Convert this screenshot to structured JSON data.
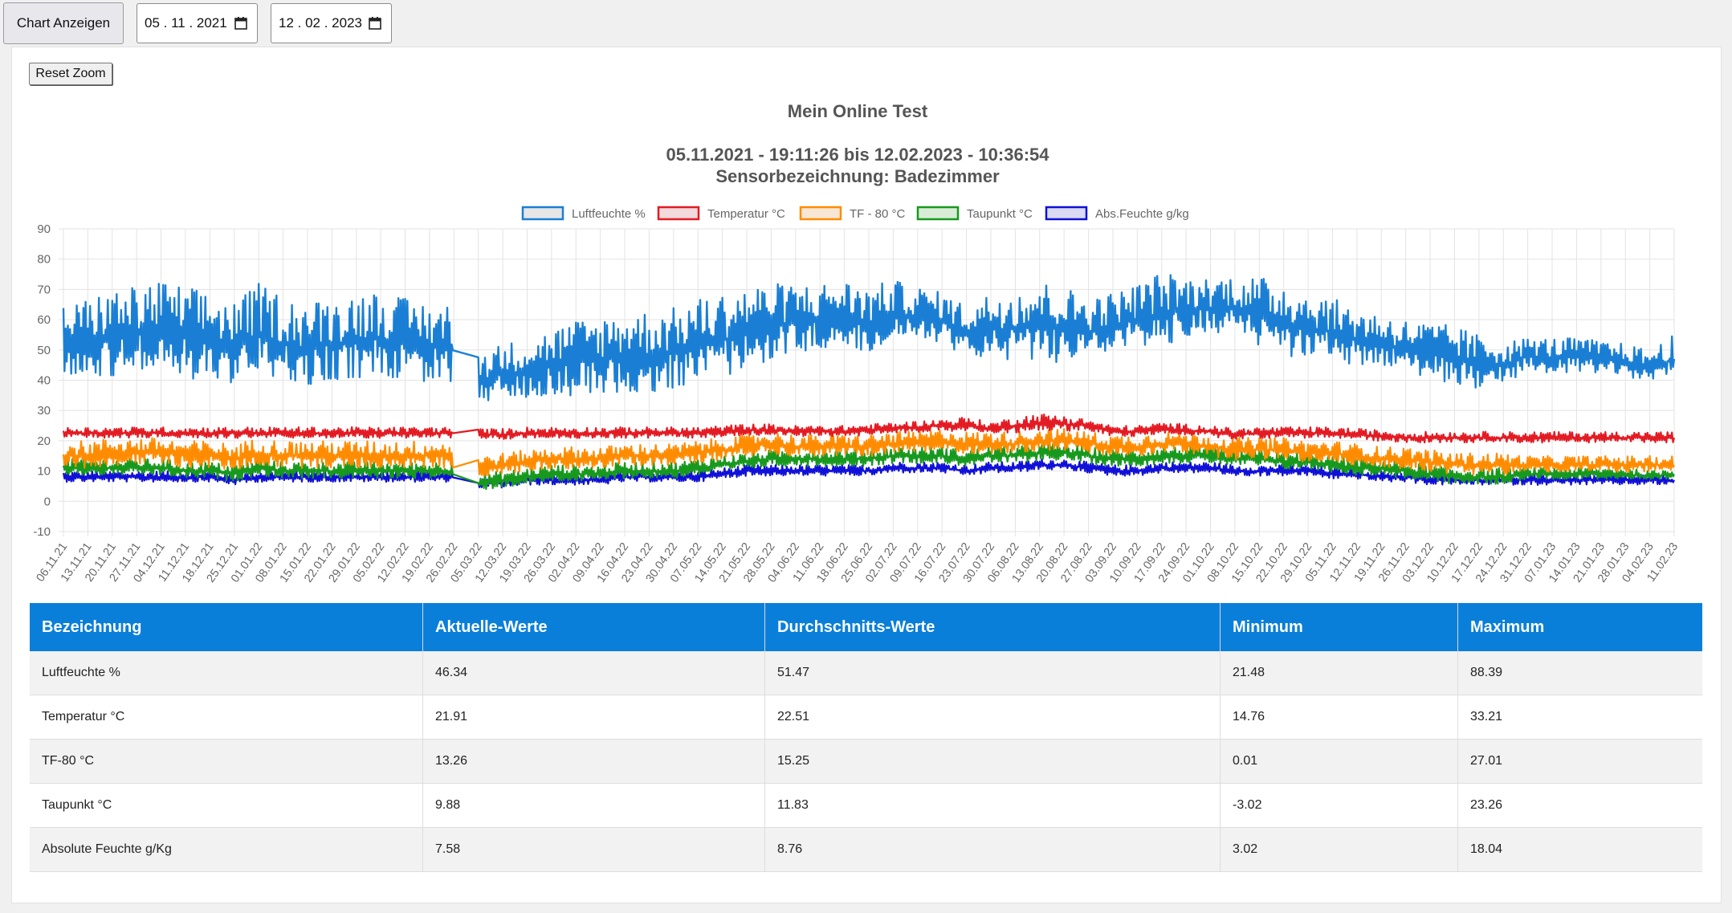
{
  "toolbar": {
    "show_chart_label": "Chart Anzeigen",
    "date_from": "05 . 11 . 2021",
    "date_to": "12 . 02 . 2023",
    "reset_zoom_label": "Reset Zoom"
  },
  "chart_data": {
    "type": "line",
    "title": "Mein Online Test",
    "subtitle_line1": "05.11.2021 - 19:11:26 bis 12.02.2023 - 10:36:54",
    "subtitle_line2": "Sensorbezeichnung: Badezimmer",
    "ylim": [
      -10,
      90
    ],
    "yticks": [
      90,
      80,
      70,
      60,
      50,
      40,
      30,
      20,
      10,
      0,
      -10
    ],
    "grid": true,
    "legend_position": "top",
    "x_range": [
      "06.11.21",
      "11.02.23"
    ],
    "data_gap": [
      "26.02.22",
      "05.03.22"
    ],
    "categories": [
      "06.11.21",
      "13.11.21",
      "20.11.21",
      "27.11.21",
      "04.12.21",
      "11.12.21",
      "18.12.21",
      "25.12.21",
      "01.01.22",
      "08.01.22",
      "15.01.22",
      "22.01.22",
      "29.01.22",
      "05.02.22",
      "12.02.22",
      "19.02.22",
      "26.02.22",
      "05.03.22",
      "12.03.22",
      "19.03.22",
      "26.03.22",
      "02.04.22",
      "09.04.22",
      "16.04.22",
      "23.04.22",
      "30.04.22",
      "07.05.22",
      "14.05.22",
      "21.05.22",
      "28.05.22",
      "04.06.22",
      "11.06.22",
      "18.06.22",
      "25.06.22",
      "02.07.22",
      "09.07.22",
      "16.07.22",
      "23.07.22",
      "30.07.22",
      "06.08.22",
      "13.08.22",
      "20.08.22",
      "27.08.22",
      "03.09.22",
      "10.09.22",
      "17.09.22",
      "24.09.22",
      "01.10.22",
      "08.10.22",
      "15.10.22",
      "22.10.22",
      "29.10.22",
      "05.11.22",
      "12.11.22",
      "19.11.22",
      "26.11.22",
      "03.12.22",
      "10.12.22",
      "17.12.22",
      "24.12.22",
      "31.12.22",
      "07.01.23",
      "14.01.23",
      "21.01.23",
      "28.01.23",
      "04.02.23",
      "11.02.23"
    ],
    "series": [
      {
        "name": "Luftfeuchte %",
        "color": "#1a7fd4",
        "fill": "#e6e6e6",
        "weekly_mean": [
          52,
          53,
          54,
          55,
          56,
          54,
          53,
          51,
          55,
          52,
          50,
          52,
          53,
          54,
          52,
          51,
          50,
          40,
          42,
          43,
          45,
          46,
          47,
          48,
          48,
          49,
          52,
          53,
          56,
          58,
          59,
          60,
          61,
          58,
          62,
          61,
          60,
          55,
          57,
          57,
          58,
          57,
          56,
          58,
          60,
          62,
          63,
          64,
          64,
          61,
          59,
          57,
          56,
          53,
          52,
          50,
          49,
          47,
          45,
          45,
          48,
          47,
          48,
          47,
          46,
          44,
          47
        ],
        "weekly_amplitude": [
          13,
          14,
          16,
          16,
          17,
          17,
          16,
          15,
          17,
          16,
          16,
          15,
          16,
          16,
          15,
          15,
          15,
          10,
          10,
          11,
          12,
          14,
          14,
          15,
          15,
          15,
          15,
          16,
          15,
          14,
          13,
          12,
          12,
          13,
          11,
          10,
          9,
          10,
          12,
          14,
          15,
          14,
          12,
          11,
          12,
          14,
          11,
          10,
          11,
          13,
          14,
          12,
          11,
          11,
          10,
          10,
          10,
          11,
          10,
          8,
          6,
          7,
          6,
          6,
          6,
          6,
          8
        ]
      },
      {
        "name": "Temperatur °C",
        "color": "#e31b23",
        "fill": "#f2d9dc",
        "weekly_mean": [
          22.5,
          22.5,
          22.5,
          22.5,
          22.5,
          22.5,
          22.5,
          22.5,
          22.5,
          22.5,
          22.5,
          22.5,
          22.5,
          22.5,
          22.5,
          22.5,
          22.5,
          22.0,
          22.0,
          22.5,
          22.5,
          22.5,
          22.5,
          22.5,
          22.5,
          22.5,
          22.5,
          23.0,
          23.5,
          23.5,
          23.0,
          23.0,
          23.0,
          23.5,
          24.0,
          24.5,
          25.0,
          25.0,
          24.0,
          25.0,
          26.0,
          25.5,
          25.0,
          23.0,
          23.0,
          24.0,
          23.5,
          23.0,
          22.0,
          22.5,
          22.5,
          22.5,
          22.5,
          22.0,
          21.5,
          21.0,
          21.0,
          21.0,
          21.0,
          21.0,
          21.0,
          21.0,
          21.0,
          21.0,
          21.0,
          21.0,
          21.0
        ],
        "weekly_amplitude": [
          2,
          2,
          2,
          2,
          2,
          2,
          2,
          2,
          2,
          2,
          2,
          2,
          2,
          2,
          2,
          2,
          2,
          2,
          2,
          2,
          2,
          2,
          2,
          2,
          2,
          2,
          2,
          2,
          2,
          2,
          2,
          2,
          2,
          2,
          2,
          2,
          2,
          3,
          2,
          3,
          3,
          3,
          2,
          2,
          2,
          2,
          2,
          2,
          2,
          2,
          2,
          2,
          2,
          2,
          2,
          2,
          2,
          2,
          2,
          2,
          2,
          2,
          2,
          2,
          2,
          2,
          2
        ]
      },
      {
        "name": "TF - 80 °C",
        "color": "#ff8c00",
        "fill": "#f7e6d3",
        "weekly_mean": [
          15,
          15,
          16,
          16,
          16,
          15,
          15,
          14,
          16,
          15,
          15,
          15,
          15,
          15,
          15,
          15,
          15,
          11,
          12,
          13,
          14,
          14,
          14,
          15,
          15,
          15,
          16,
          17,
          18,
          19,
          18,
          18,
          18,
          18,
          19,
          19,
          20,
          19,
          19,
          19,
          20,
          20,
          19,
          18,
          18,
          19,
          19,
          18,
          17,
          17,
          17,
          16,
          16,
          15,
          14,
          14,
          13,
          12,
          12,
          12,
          12,
          12,
          12,
          12,
          12,
          12,
          12
        ],
        "weekly_amplitude": [
          5,
          5,
          5,
          5,
          5,
          5,
          5,
          5,
          5,
          5,
          5,
          5,
          5,
          5,
          5,
          5,
          5,
          4,
          4,
          4,
          4,
          4,
          4,
          4,
          4,
          4,
          4,
          4,
          4,
          4,
          4,
          4,
          4,
          4,
          4,
          4,
          4,
          4,
          4,
          4,
          4,
          4,
          4,
          4,
          4,
          4,
          4,
          4,
          4,
          4,
          4,
          4,
          4,
          4,
          4,
          4,
          4,
          4,
          4,
          4,
          3,
          3,
          3,
          3,
          3,
          3,
          3
        ]
      },
      {
        "name": "Taupunkt °C",
        "color": "#17991e",
        "fill": "#d9edd6",
        "weekly_mean": [
          11,
          11,
          11,
          11,
          11,
          10,
          10,
          9,
          11,
          10,
          10,
          10,
          10,
          10,
          10,
          10,
          10,
          6,
          7,
          8,
          9,
          9,
          9,
          10,
          10,
          10,
          11,
          12,
          13,
          14,
          14,
          14,
          14,
          14,
          15,
          15,
          15,
          14,
          15,
          15,
          16,
          16,
          15,
          14,
          14,
          15,
          15,
          15,
          14,
          14,
          13,
          13,
          12,
          11,
          11,
          10,
          9,
          8,
          8,
          8,
          9,
          9,
          9,
          9,
          9,
          8,
          9
        ],
        "weekly_amplitude": [
          3,
          3,
          3,
          3,
          3,
          3,
          3,
          3,
          3,
          3,
          3,
          3,
          3,
          3,
          3,
          3,
          3,
          3,
          3,
          3,
          3,
          3,
          3,
          3,
          3,
          3,
          3,
          3,
          3,
          3,
          3,
          3,
          3,
          3,
          3,
          3,
          3,
          3,
          3,
          3,
          3,
          3,
          3,
          3,
          3,
          3,
          3,
          3,
          3,
          3,
          3,
          3,
          3,
          3,
          3,
          3,
          3,
          3,
          3,
          3,
          2,
          2,
          2,
          2,
          2,
          2,
          2
        ]
      },
      {
        "name": "Abs.Feuchte g/kg",
        "color": "#1010d8",
        "fill": "#dadaf2",
        "weekly_mean": [
          8,
          8,
          8,
          8,
          8,
          8,
          8,
          7,
          8,
          8,
          8,
          8,
          8,
          8,
          8,
          8,
          8,
          6,
          6,
          7,
          7,
          7,
          7,
          8,
          8,
          8,
          8,
          9,
          10,
          10,
          10,
          10,
          10,
          10,
          11,
          11,
          11,
          10,
          11,
          11,
          12,
          12,
          11,
          10,
          10,
          11,
          11,
          11,
          10,
          10,
          10,
          10,
          9,
          9,
          8,
          8,
          7,
          7,
          7,
          7,
          7,
          7,
          7,
          7,
          7,
          7,
          7
        ],
        "weekly_amplitude": [
          2,
          2,
          2,
          2,
          2,
          2,
          2,
          2,
          2,
          2,
          2,
          2,
          2,
          2,
          2,
          2,
          2,
          2,
          2,
          2,
          2,
          2,
          2,
          2,
          2,
          2,
          2,
          2,
          2,
          2,
          2,
          2,
          2,
          2,
          2,
          2,
          2,
          2,
          2,
          2,
          2,
          2,
          2,
          2,
          2,
          2,
          2,
          2,
          2,
          2,
          2,
          2,
          2,
          2,
          2,
          2,
          2,
          2,
          2,
          2,
          2,
          2,
          2,
          2,
          2,
          2,
          2
        ]
      }
    ]
  },
  "stats_table": {
    "headers": [
      "Bezeichnung",
      "Aktuelle-Werte",
      "Durchschnitts-Werte",
      "Minimum",
      "Maximum"
    ],
    "rows": [
      [
        "Luftfeuchte %",
        "46.34",
        "51.47",
        "21.48",
        "88.39"
      ],
      [
        "Temperatur °C",
        "21.91",
        "22.51",
        "14.76",
        "33.21"
      ],
      [
        "TF-80 °C",
        "13.26",
        "15.25",
        "0.01",
        "27.01"
      ],
      [
        "Taupunkt °C",
        "9.88",
        "11.83",
        "-3.02",
        "23.26"
      ],
      [
        "Absolute Feuchte g/Kg",
        "7.58",
        "8.76",
        "3.02",
        "18.04"
      ]
    ]
  },
  "icons": {
    "date_picker": "calendar-icon"
  }
}
